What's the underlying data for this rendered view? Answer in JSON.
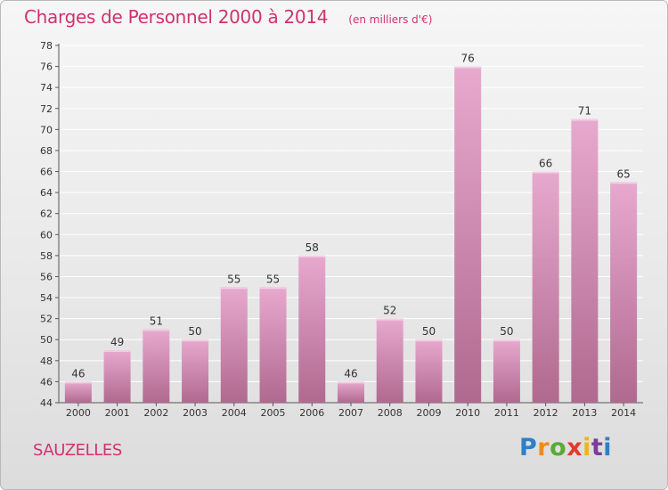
{
  "header": {
    "title": "Charges de Personnel 2000 à 2014",
    "subtitle": "(en milliers d'€)"
  },
  "footer": {
    "place": "SAUZELLES",
    "logo_text": "Proxiti"
  },
  "colors": {
    "title": "#d0336f",
    "bar_top": "#e8a9cf",
    "bar_bottom": "#b0698f",
    "axis": "#555555",
    "grid": "#ffffff"
  },
  "chart_data": {
    "type": "bar",
    "categories": [
      "2000",
      "2001",
      "2002",
      "2003",
      "2004",
      "2005",
      "2006",
      "2007",
      "2008",
      "2009",
      "2010",
      "2011",
      "2012",
      "2013",
      "2014"
    ],
    "values": [
      46,
      49,
      51,
      50,
      55,
      55,
      58,
      46,
      52,
      50,
      76,
      50,
      66,
      71,
      65
    ],
    "title": "Charges de Personnel 2000 à 2014",
    "subtitle": "(en milliers d'€)",
    "xlabel": "",
    "ylabel": "",
    "ylim": [
      44,
      78
    ],
    "yticks": [
      44,
      46,
      48,
      50,
      52,
      54,
      56,
      58,
      60,
      62,
      64,
      66,
      68,
      70,
      72,
      74,
      76,
      78
    ],
    "grid": true,
    "legend": "none"
  }
}
